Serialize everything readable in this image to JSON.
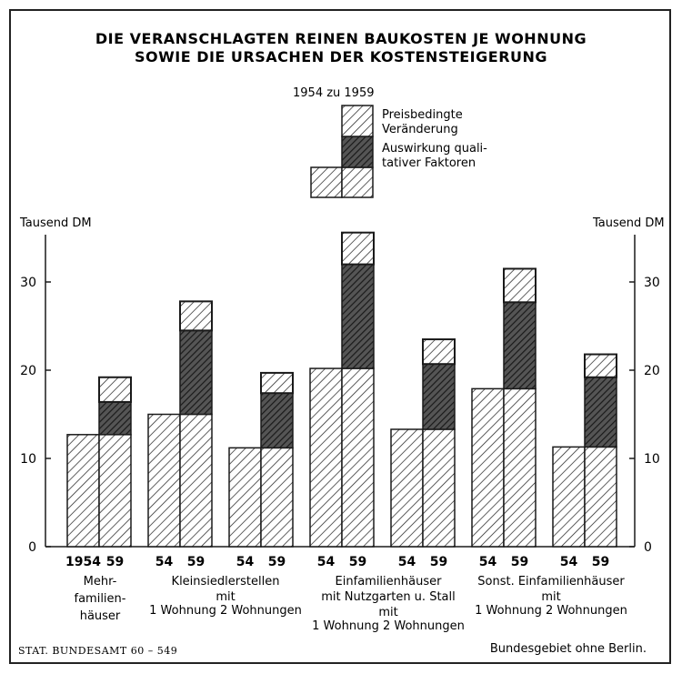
{
  "title_line1": "DIE VERANSCHLAGTEN REINEN BAUKOSTEN JE WOHNUNG",
  "title_line2": "SOWIE DIE URSACHEN DER KOSTENSTEIGERUNG",
  "legend": {
    "heading": "1954 zu 1959",
    "entry_price_1": "Preisbedingte",
    "entry_price_2": "Veränderung",
    "entry_quality_1": "Auswirkung quali-",
    "entry_quality_2": "tativer Faktoren"
  },
  "axis_unit_left": "Tausend DM",
  "axis_unit_right": "Tausend DM",
  "footer_left": "STAT. BUNDESAMT 60 – 549",
  "footer_right": "Bundesgebiet ohne Berlin.",
  "colors": {
    "ink": "#1a1a1a",
    "paper": "#ffffff"
  },
  "chart_data": {
    "type": "bar",
    "ylabel": "Tausend DM",
    "ylim": [
      0,
      38
    ],
    "yticks": [
      0,
      10,
      20,
      30
    ],
    "grid": false,
    "legend_position": "top-center",
    "series_names": [
      "Preisbedingte Veränderung",
      "Auswirkung qualitativer Faktoren"
    ],
    "groups": [
      {
        "year_labels": [
          "1954",
          "59"
        ],
        "label_lines": [
          "Mehr-",
          "familien-",
          "häuser"
        ],
        "value_1954": 12.7,
        "value_1959": {
          "base": 12.7,
          "quality": 3.7,
          "price": 2.8,
          "total": 19.2
        }
      },
      {
        "year_labels": [
          "54",
          "59"
        ],
        "label_lines": [
          "Kleinsiedlerstellen",
          "mit",
          "1 Wohnung 2 Wohnungen"
        ],
        "value_1954": 15.0,
        "value_1959": {
          "base": 15.0,
          "quality": 9.5,
          "price": 3.3,
          "total": 27.8
        }
      },
      {
        "year_labels": [
          "54",
          "59"
        ],
        "label_lines": [],
        "value_1954": 11.2,
        "value_1959": {
          "base": 11.2,
          "quality": 6.2,
          "price": 2.3,
          "total": 19.7
        }
      },
      {
        "year_labels": [
          "54",
          "59"
        ],
        "label_lines": [
          "Einfamilienhäuser",
          "mit Nutzgarten u. Stall",
          "mit",
          "1 Wohnung  2 Wohnungen"
        ],
        "value_1954": 20.2,
        "value_1959": {
          "base": 20.2,
          "quality": 11.8,
          "price": 3.6,
          "total": 35.6
        }
      },
      {
        "year_labels": [
          "54",
          "59"
        ],
        "label_lines": [],
        "value_1954": 13.3,
        "value_1959": {
          "base": 13.3,
          "quality": 7.4,
          "price": 2.8,
          "total": 23.5
        }
      },
      {
        "year_labels": [
          "54",
          "59"
        ],
        "label_lines": [
          "Sonst. Einfamilienhäuser",
          "mit",
          "1 Wohnung  2 Wohnungen"
        ],
        "value_1954": 17.9,
        "value_1959": {
          "base": 17.9,
          "quality": 9.8,
          "price": 3.8,
          "total": 31.5
        }
      },
      {
        "year_labels": [
          "54",
          "59"
        ],
        "label_lines": [],
        "value_1954": 11.3,
        "value_1959": {
          "base": 11.3,
          "quality": 7.9,
          "price": 2.6,
          "total": 21.8
        }
      }
    ]
  }
}
